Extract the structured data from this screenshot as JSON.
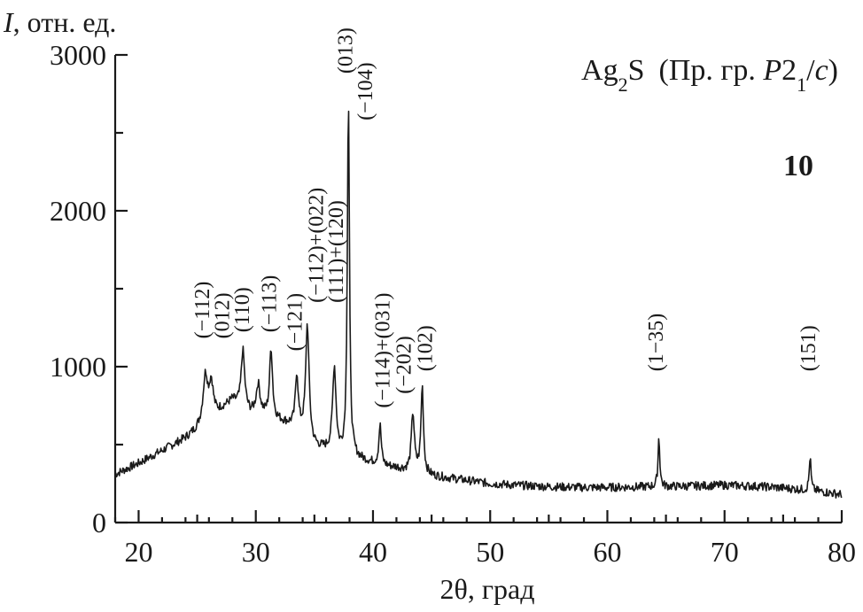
{
  "chart_data": {
    "type": "line",
    "title": "",
    "xlabel": "2θ, град",
    "ylabel": "I, отн. ед.",
    "ylabel_italic": "I",
    "ylabel_rest": ", отн. ед.",
    "xlim": [
      18,
      80
    ],
    "ylim": [
      0,
      3000
    ],
    "x_ticks": [
      20,
      30,
      40,
      50,
      60,
      70,
      80
    ],
    "y_ticks": [
      0,
      1000,
      2000,
      3000
    ],
    "grid": false,
    "annotation": {
      "compound_base": "Ag",
      "compound_sub": "2",
      "compound_rest": "S",
      "group_prefix": "(Пр. гр. ",
      "group_symbol": "P",
      "group_digits": "2",
      "group_sub": "1",
      "group_slash": "/",
      "group_c": "c",
      "group_suffix": ")"
    },
    "panel_label": "10",
    "baseline": [
      [
        18,
        310
      ],
      [
        20,
        380
      ],
      [
        22,
        460
      ],
      [
        24,
        540
      ],
      [
        25.5,
        620
      ],
      [
        27,
        720
      ],
      [
        28,
        780
      ],
      [
        29.5,
        700
      ],
      [
        30.5,
        690
      ],
      [
        32,
        650
      ],
      [
        33,
        620
      ],
      [
        34,
        560
      ],
      [
        35,
        480
      ],
      [
        36,
        460
      ],
      [
        37,
        430
      ],
      [
        38,
        420
      ],
      [
        39,
        400
      ],
      [
        40,
        380
      ],
      [
        41,
        360
      ],
      [
        42,
        350
      ],
      [
        43,
        330
      ],
      [
        44,
        320
      ],
      [
        45,
        300
      ],
      [
        46,
        290
      ],
      [
        48,
        270
      ],
      [
        50,
        250
      ],
      [
        52,
        240
      ],
      [
        55,
        230
      ],
      [
        58,
        225
      ],
      [
        60,
        225
      ],
      [
        62,
        228
      ],
      [
        64,
        230
      ],
      [
        66,
        232
      ],
      [
        68,
        236
      ],
      [
        70,
        240
      ],
      [
        72,
        235
      ],
      [
        74,
        228
      ],
      [
        76,
        215
      ],
      [
        78,
        200
      ],
      [
        80,
        180
      ]
    ],
    "peaks": [
      {
        "x": 25.7,
        "y": 940,
        "w": 0.5
      },
      {
        "x": 26.2,
        "y": 880,
        "w": 0.4
      },
      {
        "x": 28.9,
        "y": 1100,
        "w": 0.35
      },
      {
        "x": 30.2,
        "y": 880,
        "w": 0.4
      },
      {
        "x": 31.3,
        "y": 1110,
        "w": 0.3
      },
      {
        "x": 33.5,
        "y": 940,
        "w": 0.3
      },
      {
        "x": 34.4,
        "y": 1260,
        "w": 0.35
      },
      {
        "x": 36.7,
        "y": 990,
        "w": 0.35
      },
      {
        "x": 37.9,
        "y": 2700,
        "w": 0.22
      },
      {
        "x": 40.6,
        "y": 620,
        "w": 0.25
      },
      {
        "x": 43.4,
        "y": 700,
        "w": 0.3
      },
      {
        "x": 44.2,
        "y": 870,
        "w": 0.25
      },
      {
        "x": 64.4,
        "y": 550,
        "w": 0.18
      },
      {
        "x": 77.3,
        "y": 420,
        "w": 0.18
      }
    ],
    "peak_labels": [
      {
        "x": 25.6,
        "y": 1180,
        "text": "(−112)"
      },
      {
        "x": 27.3,
        "y": 1180,
        "text": "(012)"
      },
      {
        "x": 29.0,
        "y": 1220,
        "text": "(110)"
      },
      {
        "x": 31.3,
        "y": 1220,
        "text": "(−113)"
      },
      {
        "x": 33.5,
        "y": 1100,
        "text": "(−121)"
      },
      {
        "x": 35.3,
        "y": 1410,
        "text": "(−112)+(022)"
      },
      {
        "x": 37.0,
        "y": 1410,
        "text": "(111)+(120)"
      },
      {
        "x": 37.8,
        "y": 2880,
        "text": "(013)"
      },
      {
        "x": 39.5,
        "y": 2580,
        "text": "(−104)"
      },
      {
        "x": 41.0,
        "y": 735,
        "text": "(−114)+(031)"
      },
      {
        "x": 42.8,
        "y": 825,
        "text": "(−202)"
      },
      {
        "x": 44.6,
        "y": 970,
        "text": "(102)"
      },
      {
        "x": 64.3,
        "y": 970,
        "text": "(1−35)"
      },
      {
        "x": 77.3,
        "y": 970,
        "text": "(151)"
      }
    ]
  }
}
